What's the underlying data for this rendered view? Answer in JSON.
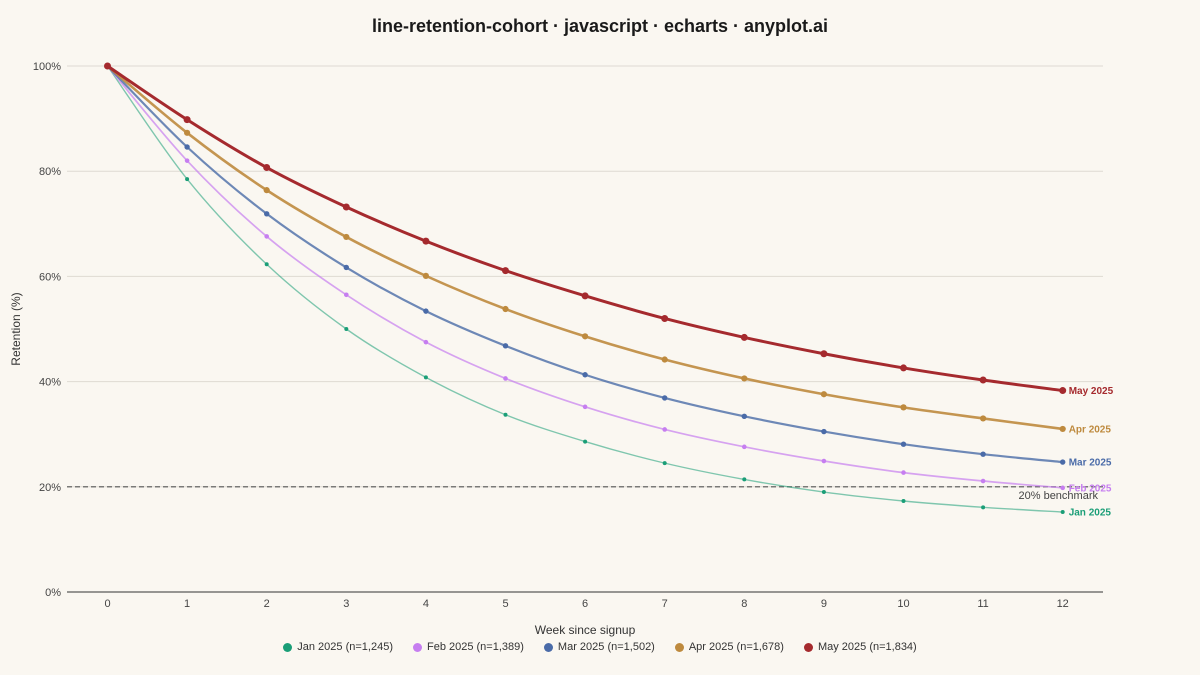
{
  "chart_data": {
    "type": "line",
    "title": "line-retention-cohort · javascript · echarts · anyplot.ai",
    "xlabel": "Week since signup",
    "ylabel": "Retention (%)",
    "x": [
      0,
      1,
      2,
      3,
      4,
      5,
      6,
      7,
      8,
      9,
      10,
      11,
      12
    ],
    "xlim": [
      0,
      12
    ],
    "ylim": [
      0,
      100
    ],
    "yticks": [
      "0%",
      "20%",
      "40%",
      "60%",
      "80%",
      "100%"
    ],
    "grid": true,
    "legend_position": "bottom",
    "benchmark": {
      "value": 20,
      "label": "20% benchmark"
    },
    "series": [
      {
        "name": "Jan 2025",
        "legend": "Jan 2025 (n=1,245)",
        "color": "#1A9E77",
        "values": [
          100,
          78.5,
          62.3,
          50.0,
          40.8,
          33.7,
          28.6,
          24.5,
          21.4,
          19.0,
          17.3,
          16.1,
          15.2
        ]
      },
      {
        "name": "Feb 2025",
        "legend": "Feb 2025 (n=1,389)",
        "color": "#C67EF0",
        "values": [
          100,
          82.0,
          67.6,
          56.5,
          47.5,
          40.6,
          35.2,
          30.9,
          27.6,
          24.9,
          22.7,
          21.1,
          19.8
        ]
      },
      {
        "name": "Mar 2025",
        "legend": "Mar 2025 (n=1,502)",
        "color": "#4A6BA8",
        "values": [
          100,
          84.6,
          71.9,
          61.7,
          53.4,
          46.8,
          41.3,
          36.9,
          33.4,
          30.5,
          28.1,
          26.2,
          24.7
        ]
      },
      {
        "name": "Apr 2025",
        "legend": "Apr 2025 (n=1,678)",
        "color": "#BE8A3E",
        "values": [
          100,
          87.3,
          76.4,
          67.5,
          60.1,
          53.8,
          48.6,
          44.2,
          40.6,
          37.6,
          35.1,
          33.0,
          31.0
        ]
      },
      {
        "name": "May 2025",
        "legend": "May 2025 (n=1,834)",
        "color": "#A52A2E",
        "values": [
          100,
          89.8,
          80.7,
          73.2,
          66.7,
          61.1,
          56.3,
          52.0,
          48.4,
          45.3,
          42.6,
          40.3,
          38.3
        ]
      }
    ]
  }
}
